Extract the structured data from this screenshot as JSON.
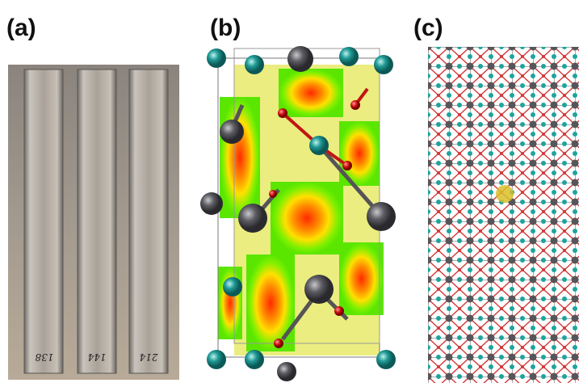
{
  "panels": [
    {
      "label": "(a)",
      "sample_labels": [
        "138",
        "144",
        "214"
      ]
    },
    {
      "label": "(b)"
    },
    {
      "label": "(c)"
    }
  ]
}
